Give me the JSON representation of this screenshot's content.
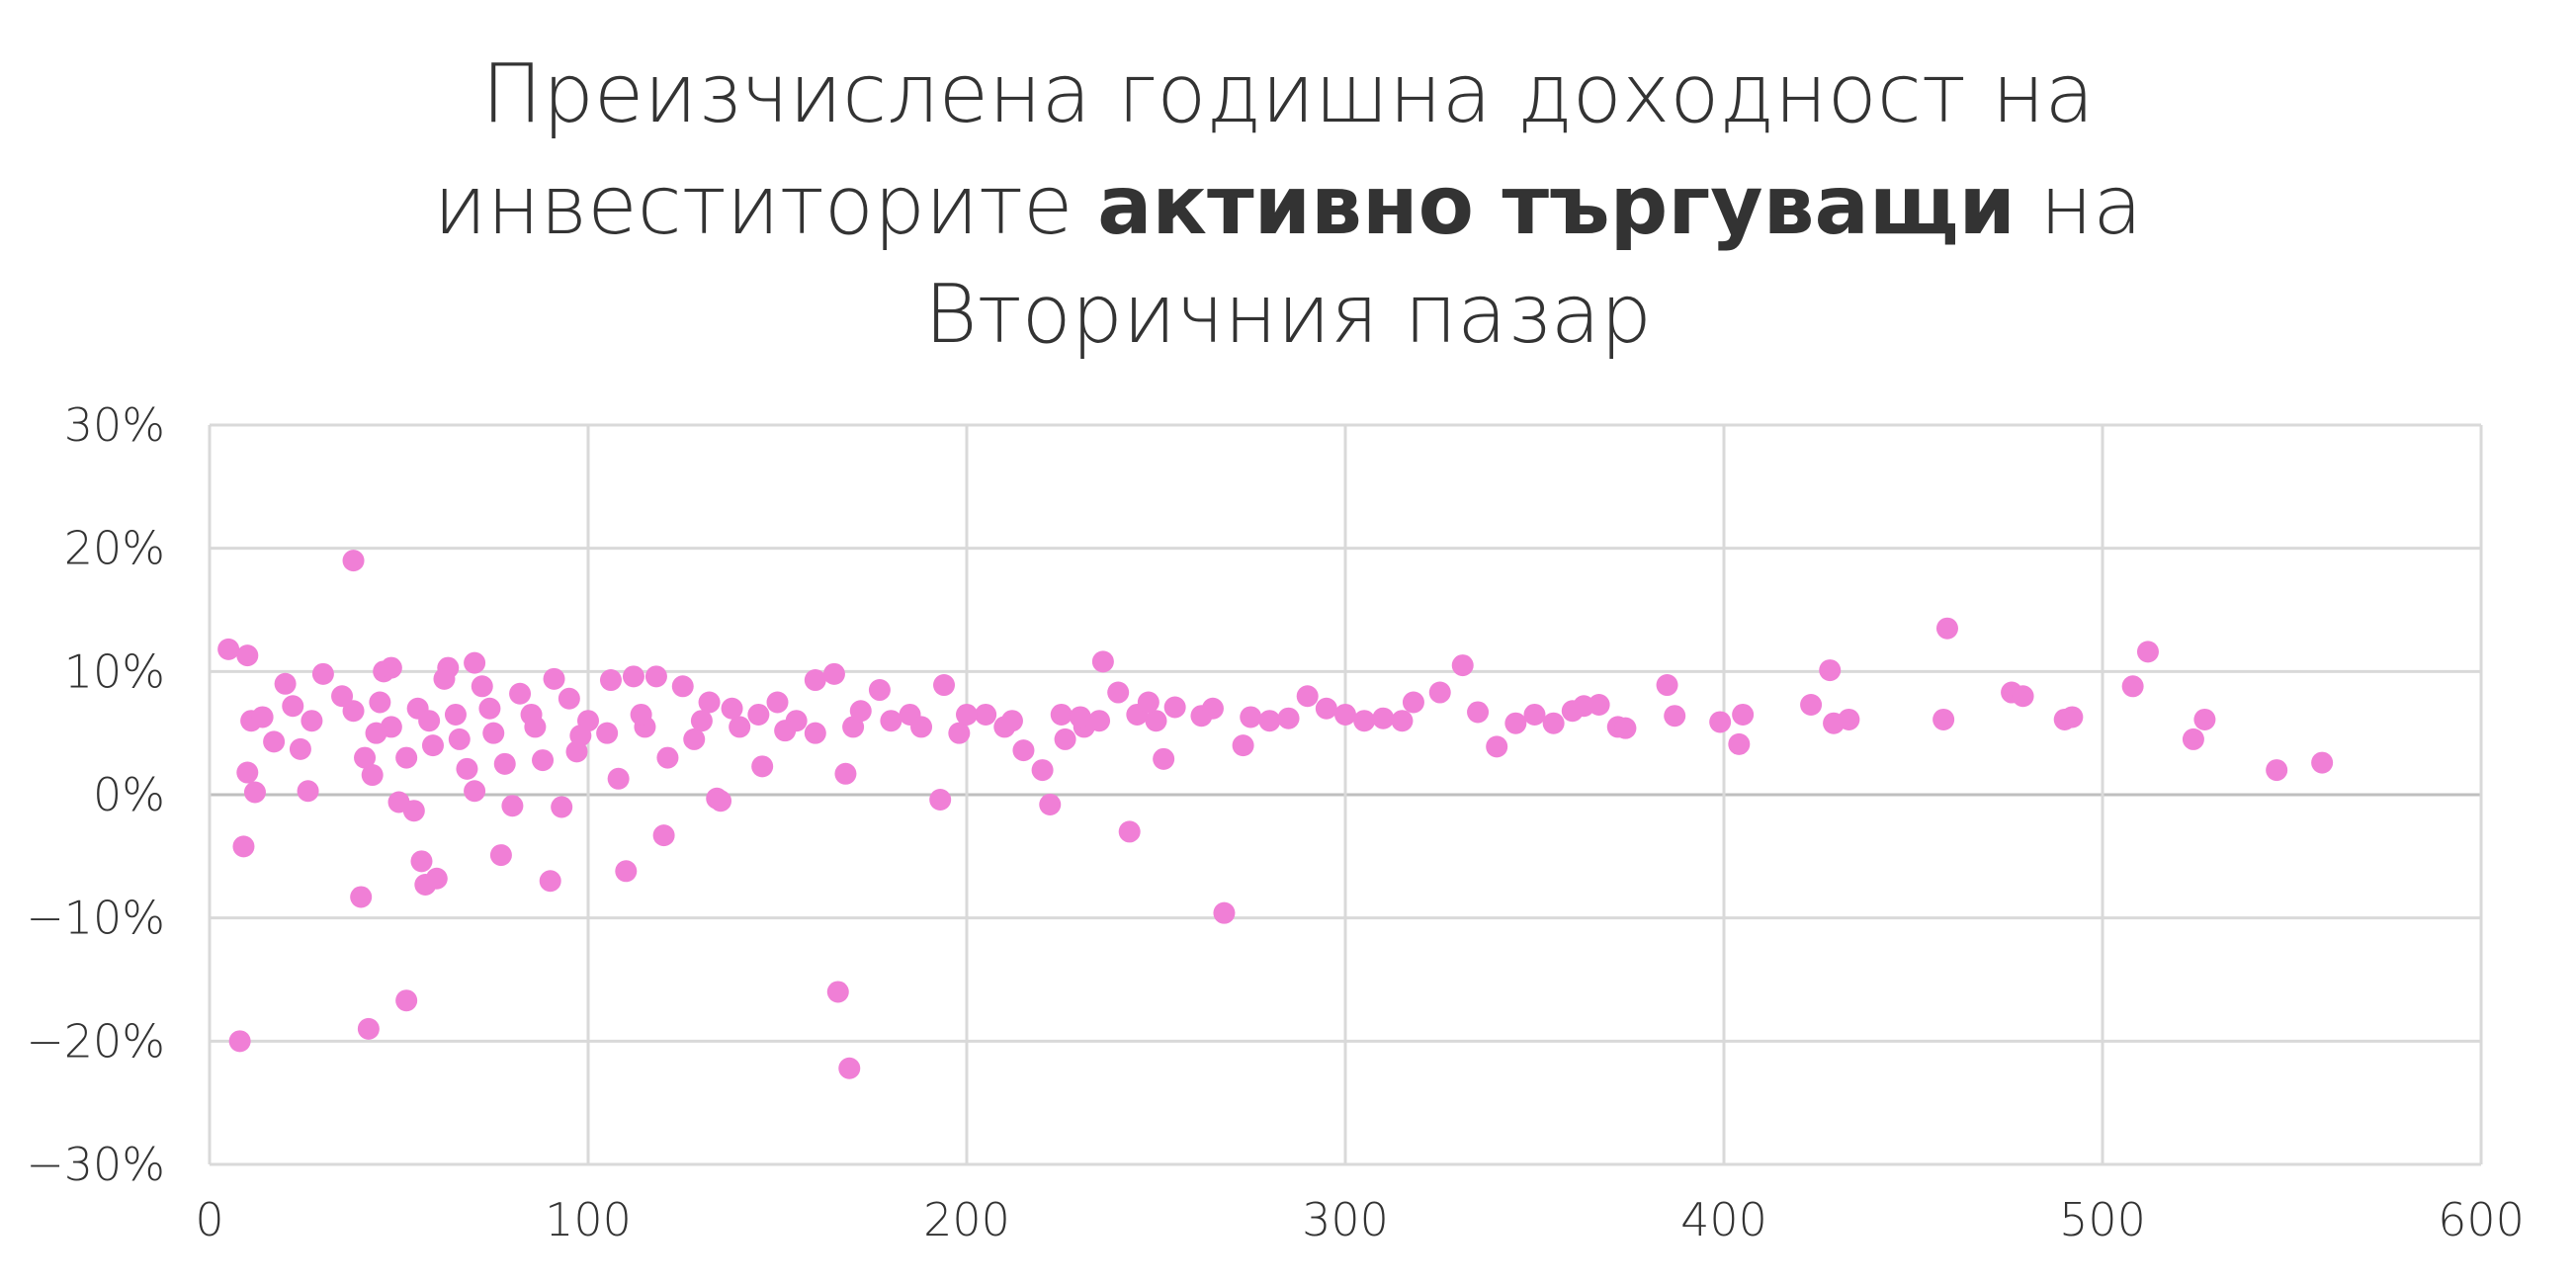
{
  "chart_data": {
    "type": "scatter",
    "title": [
      [
        {
          "text": "Преизчислена годишна доходност на"
        }
      ],
      [
        {
          "text": "инвеститорите"
        },
        {
          "text": "активно търгуващи",
          "bold": true
        },
        {
          "text": "на"
        }
      ],
      [
        {
          "text": "Вторичния пазар"
        }
      ]
    ],
    "x": [
      5,
      10,
      9,
      8,
      10,
      11,
      12,
      14,
      17,
      20,
      22,
      24,
      26,
      27,
      30,
      38,
      40,
      42,
      43,
      46,
      48,
      50,
      52,
      54,
      56,
      57,
      60,
      63,
      70,
      70,
      77,
      80,
      90,
      93,
      110,
      120,
      134,
      135,
      166,
      169,
      193,
      220,
      222,
      236,
      243,
      252,
      268,
      273,
      331,
      340,
      385,
      387,
      399,
      404,
      405,
      423,
      428,
      429,
      433,
      458,
      459,
      476,
      479,
      490,
      492,
      508,
      512,
      524,
      527,
      546,
      558,
      367,
      372,
      374,
      355,
      350,
      345,
      325,
      318,
      310,
      300,
      290,
      280,
      262,
      255,
      245,
      240,
      231,
      226,
      215,
      205,
      198,
      194,
      185,
      177,
      170,
      168,
      165,
      160,
      155,
      150,
      146,
      140,
      132,
      128,
      125,
      121,
      118,
      115,
      112,
      108,
      106,
      100,
      97,
      95,
      91,
      88,
      85,
      82,
      78,
      75,
      72,
      68,
      65,
      62,
      59,
      55,
      52,
      48,
      45,
      41,
      38,
      35,
      105,
      130,
      145,
      160,
      180,
      200,
      210,
      225,
      235,
      250,
      265,
      275,
      285,
      295,
      305,
      315,
      335,
      360,
      363,
      44,
      58,
      66,
      74,
      86,
      98,
      114,
      138,
      152,
      172,
      188,
      212,
      230,
      248
    ],
    "values": [
      11.8,
      11.3,
      -4.2,
      -20,
      1.8,
      6,
      0.2,
      6.3,
      4.3,
      9,
      7.2,
      3.7,
      0.3,
      6,
      9.8,
      19,
      -8.3,
      -19,
      1.6,
      10,
      10.3,
      -0.6,
      -16.7,
      -1.3,
      -5.4,
      -7.3,
      -6.8,
      10.3,
      10.7,
      0.3,
      -4.9,
      -0.9,
      -7,
      -1,
      -6.2,
      -3.3,
      -0.3,
      -0.5,
      -16,
      -22.2,
      -0.4,
      2,
      -0.8,
      10.8,
      -3,
      2.9,
      -9.6,
      4,
      10.5,
      3.9,
      8.9,
      6.4,
      5.9,
      4.1,
      6.5,
      7.3,
      10.1,
      5.8,
      6.1,
      6.1,
      13.5,
      8.3,
      8,
      6.1,
      6.3,
      8.8,
      11.6,
      4.5,
      6.1,
      2,
      2.6,
      7.3,
      5.5,
      5.4,
      5.8,
      6.5,
      5.8,
      8.3,
      7.5,
      6.2,
      6.5,
      8,
      6,
      6.4,
      7.1,
      6.5,
      8.3,
      5.5,
      4.5,
      3.6,
      6.5,
      5,
      8.9,
      6.5,
      8.5,
      5.5,
      1.7,
      9.8,
      9.3,
      6,
      7.5,
      2.3,
      5.5,
      7.5,
      4.5,
      8.8,
      3,
      9.6,
      5.5,
      9.6,
      1.3,
      9.3,
      6,
      3.5,
      7.8,
      9.4,
      2.8,
      6.5,
      8.2,
      2.5,
      5,
      8.8,
      2.1,
      6.5,
      9.4,
      4,
      7,
      3,
      5.5,
      7.5,
      3,
      6.8,
      8,
      5,
      6,
      6.5,
      5,
      6,
      6.5,
      5.5,
      6.5,
      6,
      6,
      7,
      6.3,
      6.2,
      7,
      6,
      6,
      6.7,
      6.8,
      7.2,
      5,
      6,
      4.5,
      7,
      5.5,
      4.8,
      6.5,
      7,
      5.2,
      6.8,
      5.5,
      6,
      6.3,
      7.5
    ],
    "color": "#f07fd6",
    "xlim": [
      0,
      600
    ],
    "xticks": [
      0,
      100,
      200,
      300,
      400,
      500,
      600
    ],
    "ylim": [
      -30,
      30
    ],
    "yticks": [
      {
        "value": -30,
        "label": "−30%"
      },
      {
        "value": -20,
        "label": "−20%"
      },
      {
        "value": -10,
        "label": "−10%"
      },
      {
        "value": 0,
        "label": "0%"
      },
      {
        "value": 10,
        "label": "10%"
      },
      {
        "value": 20,
        "label": "20%"
      },
      {
        "value": 30,
        "label": "30%"
      }
    ],
    "grid": true
  }
}
